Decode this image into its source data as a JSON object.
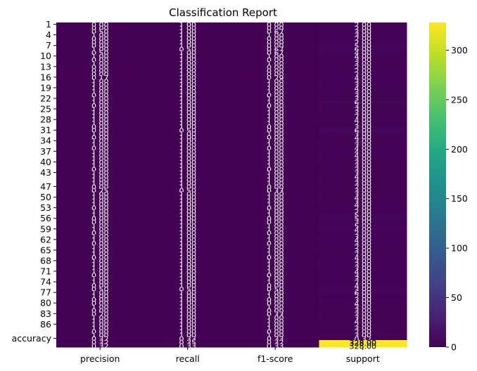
{
  "chart_data": {
    "type": "heatmap",
    "title": "Classification Report",
    "columns": [
      "precision",
      "recall",
      "f1-score",
      "support"
    ],
    "row_labels_shown": [
      "1",
      "4",
      "7",
      "10",
      "13",
      "16",
      "19",
      "22",
      "25",
      "28",
      "31",
      "34",
      "37",
      "40",
      "43",
      "47",
      "50",
      "53",
      "56",
      "59",
      "62",
      "65",
      "68",
      "71",
      "74",
      "77",
      "80",
      "83",
      "86",
      "accuracy"
    ],
    "row_count": 92,
    "values": {
      "precision": [
        0.0,
        0.0,
        0.5,
        1.0,
        0.0,
        0.0,
        0.0,
        1.0,
        0.5,
        1.0,
        0.0,
        1.0,
        0.0,
        0.0,
        0.0,
        0.17,
        1.0,
        1.0,
        1.0,
        1.0,
        0.0,
        1.0,
        1.0,
        0.0,
        1.0,
        1.0,
        1.0,
        1.0,
        1.0,
        0.0,
        0.0,
        1.0,
        0.0,
        1.0,
        1.0,
        0.0,
        1.0,
        1.0,
        1.0,
        1.0,
        1.0,
        0.0,
        1.0,
        1.0,
        1.0,
        1.0,
        0.0,
        0.25,
        1.0,
        1.0,
        1.0,
        1.0,
        0.0,
        1.0,
        1.0,
        0.0,
        0.0,
        1.0,
        1.0,
        0.0,
        1.0,
        1.0,
        0.0,
        1.0,
        1.0,
        1.0,
        0.0,
        1.0,
        1.0,
        1.0,
        1.0,
        0.0,
        1.0,
        1.0,
        0.0,
        0.5,
        1.0,
        1.0,
        0.0,
        0.0,
        1.0,
        0.0,
        0.2,
        1.0,
        1.0,
        1.0,
        1.0,
        0.0,
        1.0,
        0.32,
        0.32,
        0.32
      ],
      "recall": [
        1.0,
        1.0,
        1.0,
        1.0,
        1.0,
        1.0,
        1.0,
        0.5,
        1.0,
        1.0,
        1.0,
        1.0,
        1.0,
        1.0,
        1.0,
        1.0,
        1.0,
        1.0,
        1.0,
        1.0,
        1.0,
        1.0,
        1.0,
        1.0,
        1.0,
        1.0,
        1.0,
        1.0,
        1.0,
        1.0,
        0.5,
        1.0,
        1.0,
        1.0,
        1.0,
        1.0,
        1.0,
        1.0,
        1.0,
        1.0,
        1.0,
        1.0,
        1.0,
        1.0,
        1.0,
        1.0,
        1.0,
        0.5,
        1.0,
        1.0,
        1.0,
        1.0,
        1.0,
        1.0,
        1.0,
        1.0,
        1.0,
        1.0,
        1.0,
        1.0,
        1.0,
        1.0,
        1.0,
        1.0,
        1.0,
        1.0,
        1.0,
        1.0,
        1.0,
        1.0,
        1.0,
        1.0,
        1.0,
        1.0,
        1.0,
        0.5,
        1.0,
        1.0,
        1.0,
        1.0,
        1.0,
        1.0,
        1.0,
        1.0,
        1.0,
        1.0,
        1.0,
        1.0,
        1.0,
        0.33,
        0.35,
        0.33
      ],
      "f1-score": [
        0.0,
        0.0,
        0.67,
        1.0,
        0.0,
        0.0,
        0.0,
        0.67,
        0.67,
        1.0,
        0.0,
        1.0,
        0.0,
        0.0,
        0.0,
        0.29,
        1.0,
        1.0,
        1.0,
        1.0,
        0.0,
        1.0,
        1.0,
        0.0,
        1.0,
        1.0,
        1.0,
        1.0,
        1.0,
        0.0,
        0.0,
        1.0,
        0.0,
        1.0,
        1.0,
        0.0,
        1.0,
        1.0,
        1.0,
        1.0,
        1.0,
        0.0,
        1.0,
        1.0,
        1.0,
        1.0,
        0.0,
        0.33,
        1.0,
        1.0,
        1.0,
        1.0,
        0.0,
        1.0,
        1.0,
        0.0,
        0.0,
        1.0,
        1.0,
        0.0,
        1.0,
        1.0,
        0.0,
        1.0,
        1.0,
        1.0,
        0.0,
        1.0,
        1.0,
        1.0,
        1.0,
        0.0,
        1.0,
        1.0,
        0.0,
        0.5,
        1.0,
        1.0,
        0.0,
        0.0,
        1.0,
        0.0,
        0.33,
        1.0,
        1.0,
        1.0,
        1.0,
        0.0,
        1.0,
        0.33,
        0.32,
        0.33
      ],
      "support": [
        2,
        2,
        3,
        3,
        2,
        2,
        5,
        6,
        4,
        4,
        3,
        3,
        2,
        2,
        2,
        4,
        3,
        3,
        4,
        3,
        3,
        3,
        6,
        3,
        3,
        3,
        2,
        4,
        2,
        3,
        6,
        3,
        4,
        3,
        3,
        4,
        4,
        4,
        3,
        3,
        3,
        3,
        3,
        4,
        3,
        3,
        2,
        3,
        3,
        4,
        3,
        4,
        2,
        2,
        5,
        5,
        3,
        5,
        4,
        2,
        3,
        4,
        3,
        2,
        3,
        2,
        4,
        3,
        3,
        3,
        4,
        3,
        3,
        2,
        4,
        3,
        6,
        2,
        3,
        4,
        3,
        3,
        3,
        3,
        4,
        2,
        3,
        2,
        3,
        0.32,
        328,
        328
      ]
    },
    "colorbar": {
      "ticks": [
        0,
        50,
        100,
        150,
        200,
        250,
        300
      ],
      "range": [
        0,
        328
      ]
    },
    "accuracy_row_label": "accuracy",
    "support_total_label": "328.00",
    "colormap": "viridis",
    "colors": {
      "low": "#440154",
      "high": "#fde725"
    }
  }
}
